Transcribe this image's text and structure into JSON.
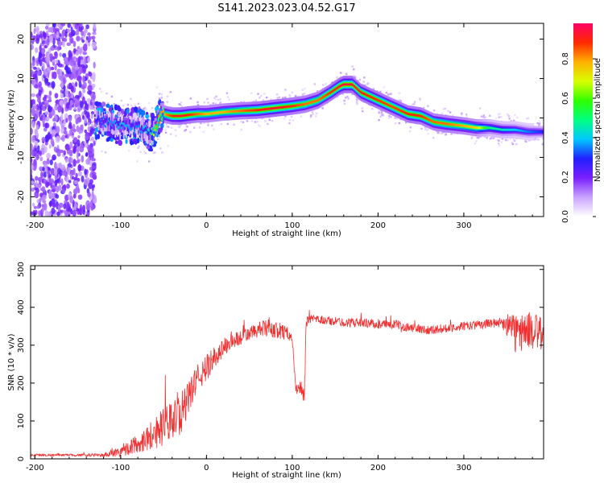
{
  "title": "S141.2023.023.04.52.G17",
  "chart_data": [
    {
      "type": "heatmap",
      "xlabel": "Height of straight line (km)",
      "ylabel": "Frequency (Hz)",
      "xlim": [
        -205,
        393
      ],
      "ylim": [
        -25,
        24
      ],
      "xticks": [
        -200,
        -100,
        0,
        100,
        200,
        300
      ],
      "yticks": [
        -20,
        -10,
        0,
        10,
        20
      ],
      "colorbar": {
        "label": "Normalized spectral amplitude",
        "range": [
          0,
          0.98
        ],
        "ticks": [
          "0.0",
          "0.2",
          "0.4",
          "0.6",
          "0.8"
        ],
        "ramp": [
          "#ffffff",
          "#c9a4ff",
          "#7a1fff",
          "#2020ff",
          "#00c8ff",
          "#00ff80",
          "#30ff00",
          "#d8ff00",
          "#ffb000",
          "#ff2a00",
          "#ff0066"
        ]
      },
      "ridge": {
        "x": [
          -135,
          -120,
          -100,
          -80,
          -65,
          -60,
          -55,
          -50,
          -40,
          -30,
          -20,
          -10,
          0,
          20,
          40,
          60,
          80,
          100,
          115,
          130,
          145,
          155,
          160,
          170,
          180,
          195,
          215,
          235,
          250,
          265,
          280,
          300,
          315,
          330,
          345,
          360,
          375,
          393
        ],
        "y": [
          0,
          -1,
          -2,
          -2,
          -4,
          -3,
          0,
          1,
          0.5,
          0.5,
          0.8,
          1,
          1,
          1.5,
          1.8,
          2,
          2.5,
          3,
          3.5,
          4.5,
          6.5,
          8,
          8.5,
          8.5,
          6.5,
          5,
          3,
          1,
          0.5,
          -1,
          -1.5,
          -2,
          -2.5,
          -2.5,
          -3,
          -3,
          -3.5,
          -3.5
        ],
        "amplitude": [
          0.25,
          0.35,
          0.4,
          0.35,
          0.45,
          0.8,
          0.85,
          0.8,
          0.9,
          0.95,
          0.9,
          0.85,
          0.8,
          0.8,
          0.85,
          0.9,
          0.95,
          0.9,
          0.85,
          0.85,
          0.9,
          0.95,
          0.95,
          0.95,
          0.92,
          0.9,
          0.88,
          0.9,
          0.9,
          0.85,
          0.85,
          0.8,
          0.75,
          0.5,
          0.45,
          0.4,
          0.35,
          0.3
        ]
      },
      "noise_region_x": [
        -205,
        -130
      ]
    },
    {
      "type": "line",
      "xlabel": "Height of straight line (km)",
      "ylabel": "SNR (10 * v/v)",
      "xlim": [
        -205,
        393
      ],
      "ylim": [
        0,
        510
      ],
      "xticks": [
        -200,
        -100,
        0,
        100,
        200,
        300
      ],
      "yticks": [
        0,
        100,
        200,
        300,
        400,
        500
      ],
      "color": "#f03030",
      "series": [
        {
          "x": [
            -205,
            -150,
            -120,
            -110,
            -100,
            -90,
            -80,
            -70,
            -60,
            -50,
            -40,
            -30,
            -20,
            -15,
            -10,
            0,
            10,
            20,
            30,
            40,
            50,
            60,
            70,
            80,
            90,
            100,
            104,
            110,
            114,
            116,
            120,
            140,
            160,
            180,
            200,
            220,
            240,
            260,
            280,
            300,
            320,
            340,
            350,
            360,
            375,
            393
          ],
          "y": [
            10,
            10,
            10,
            15,
            20,
            30,
            40,
            55,
            70,
            85,
            100,
            120,
            160,
            200,
            210,
            240,
            270,
            295,
            310,
            320,
            330,
            340,
            345,
            340,
            335,
            325,
            180,
            190,
            160,
            360,
            370,
            365,
            360,
            360,
            355,
            355,
            345,
            340,
            345,
            350,
            355,
            360,
            355,
            330,
            340,
            330
          ],
          "amplitude": [
            3,
            3,
            5,
            10,
            15,
            20,
            25,
            35,
            45,
            50,
            55,
            55,
            45,
            40,
            40,
            35,
            30,
            25,
            22,
            20,
            20,
            20,
            25,
            22,
            20,
            15,
            15,
            20,
            30,
            15,
            10,
            12,
            12,
            12,
            12,
            12,
            12,
            12,
            12,
            12,
            12,
            12,
            30,
            55,
            50,
            45
          ]
        }
      ]
    }
  ]
}
